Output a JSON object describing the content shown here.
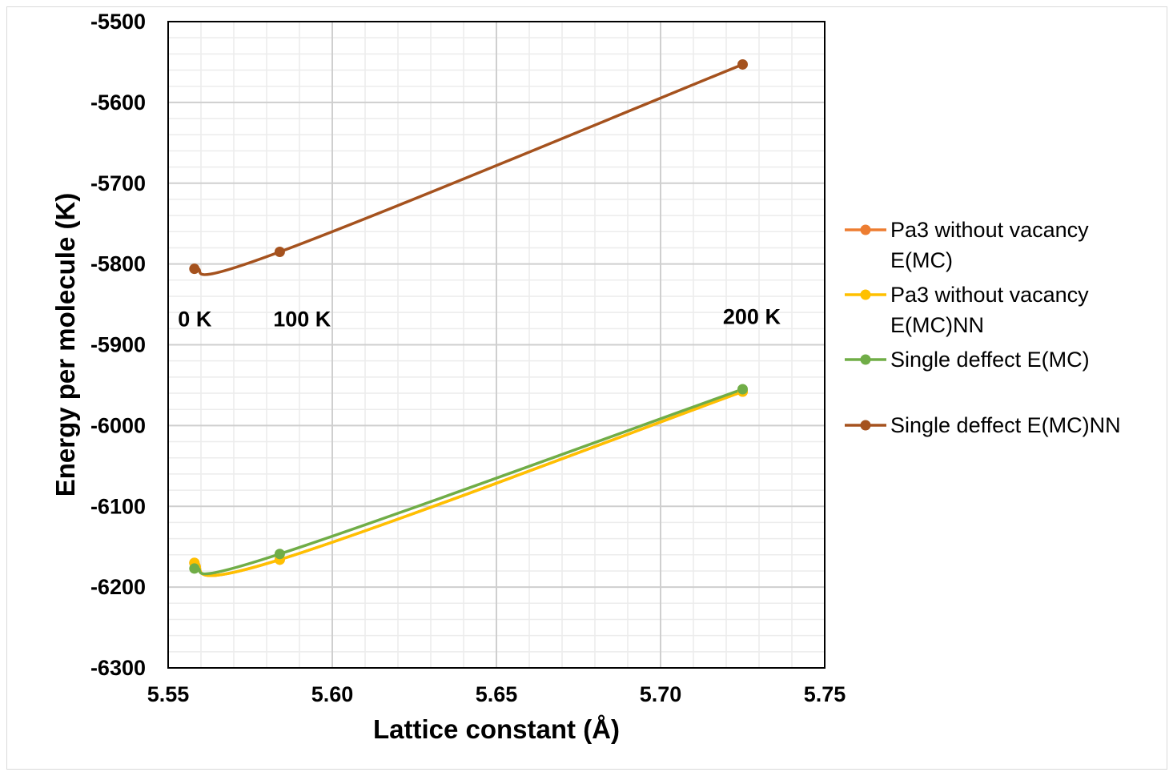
{
  "chart_data": {
    "type": "scatter",
    "xlabel": "Lattice constant (Å)",
    "ylabel": "Energy per molecule (K)",
    "xlim": [
      5.55,
      5.75
    ],
    "ylim": [
      -6300,
      -5500
    ],
    "x_major_step": 0.05,
    "y_major_step": 100,
    "x_tick_labels": [
      "5.55",
      "5.60",
      "5.65",
      "5.70",
      "5.75"
    ],
    "y_tick_labels": [
      "-5500",
      "-5600",
      "-5700",
      "-5800",
      "-5900",
      "-6000",
      "-6100",
      "-6200",
      "-6300"
    ],
    "grid": true,
    "minor_grid": true,
    "smooth_lines": true,
    "legend_position": "right",
    "series": [
      {
        "name": "Pa3 without vacancy E(MC)",
        "legend_lines": [
          "Pa3 without vacancy",
          "E(MC)"
        ],
        "color": "#ED7D31",
        "x": [
          5.558,
          5.584,
          5.725
        ],
        "y": [
          -6170,
          -6166,
          -5958
        ]
      },
      {
        "name": "Pa3 without vacancy E(MC)NN",
        "legend_lines": [
          "Pa3 without vacancy",
          "E(MC)NN"
        ],
        "color": "#FFC000",
        "x": [
          5.558,
          5.584,
          5.725
        ],
        "y": [
          -6170,
          -6166,
          -5958
        ]
      },
      {
        "name": "Single deffect E(MC)",
        "legend_lines": [
          "Single deffect E(MC)"
        ],
        "color": "#70AD47",
        "x": [
          5.558,
          5.584,
          5.725
        ],
        "y": [
          -6177,
          -6159,
          -5955
        ]
      },
      {
        "name": "Single deffect E(MC)NN",
        "legend_lines": [
          "Single deffect E(MC)NN"
        ],
        "color": "#A5521E",
        "x": [
          5.558,
          5.584,
          5.725
        ],
        "y": [
          -5806,
          -5785,
          -5553
        ]
      }
    ],
    "annotations": [
      {
        "text": "0 K",
        "x": 5.553,
        "y": -5877
      },
      {
        "text": "100 K",
        "x": 5.582,
        "y": -5877
      },
      {
        "text": "200 K",
        "x": 5.719,
        "y": -5874
      }
    ]
  }
}
